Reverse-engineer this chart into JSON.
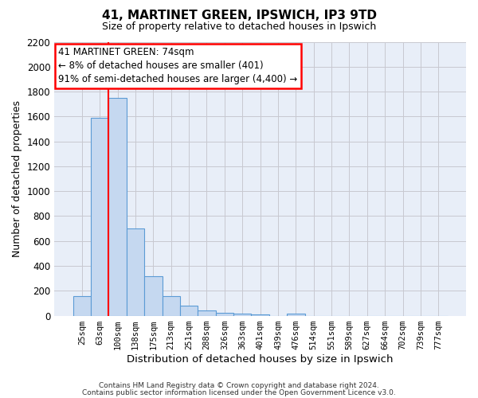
{
  "title": "41, MARTINET GREEN, IPSWICH, IP3 9TD",
  "subtitle": "Size of property relative to detached houses in Ipswich",
  "xlabel": "Distribution of detached houses by size in Ipswich",
  "ylabel": "Number of detached properties",
  "bar_labels": [
    "25sqm",
    "63sqm",
    "100sqm",
    "138sqm",
    "175sqm",
    "213sqm",
    "251sqm",
    "288sqm",
    "326sqm",
    "363sqm",
    "401sqm",
    "439sqm",
    "476sqm",
    "514sqm",
    "551sqm",
    "589sqm",
    "627sqm",
    "664sqm",
    "702sqm",
    "739sqm",
    "777sqm"
  ],
  "bar_values": [
    155,
    1590,
    1750,
    700,
    315,
    155,
    80,
    45,
    25,
    15,
    10,
    0,
    15,
    0,
    0,
    0,
    0,
    0,
    0,
    0,
    0
  ],
  "bar_color": "#c5d8f0",
  "bar_edge_color": "#5b9bd5",
  "ylim": [
    0,
    2200
  ],
  "yticks": [
    0,
    200,
    400,
    600,
    800,
    1000,
    1200,
    1400,
    1600,
    1800,
    2000,
    2200
  ],
  "red_line_x": 1.5,
  "annotation_title": "41 MARTINET GREEN: 74sqm",
  "annotation_line1": "← 8% of detached houses are smaller (401)",
  "annotation_line2": "91% of semi-detached houses are larger (4,400) →",
  "footnote1": "Contains HM Land Registry data © Crown copyright and database right 2024.",
  "footnote2": "Contains public sector information licensed under the Open Government Licence v3.0.",
  "bg_color": "#ffffff",
  "ax_bg_color": "#e8eef8",
  "grid_color": "#c8c8d0"
}
